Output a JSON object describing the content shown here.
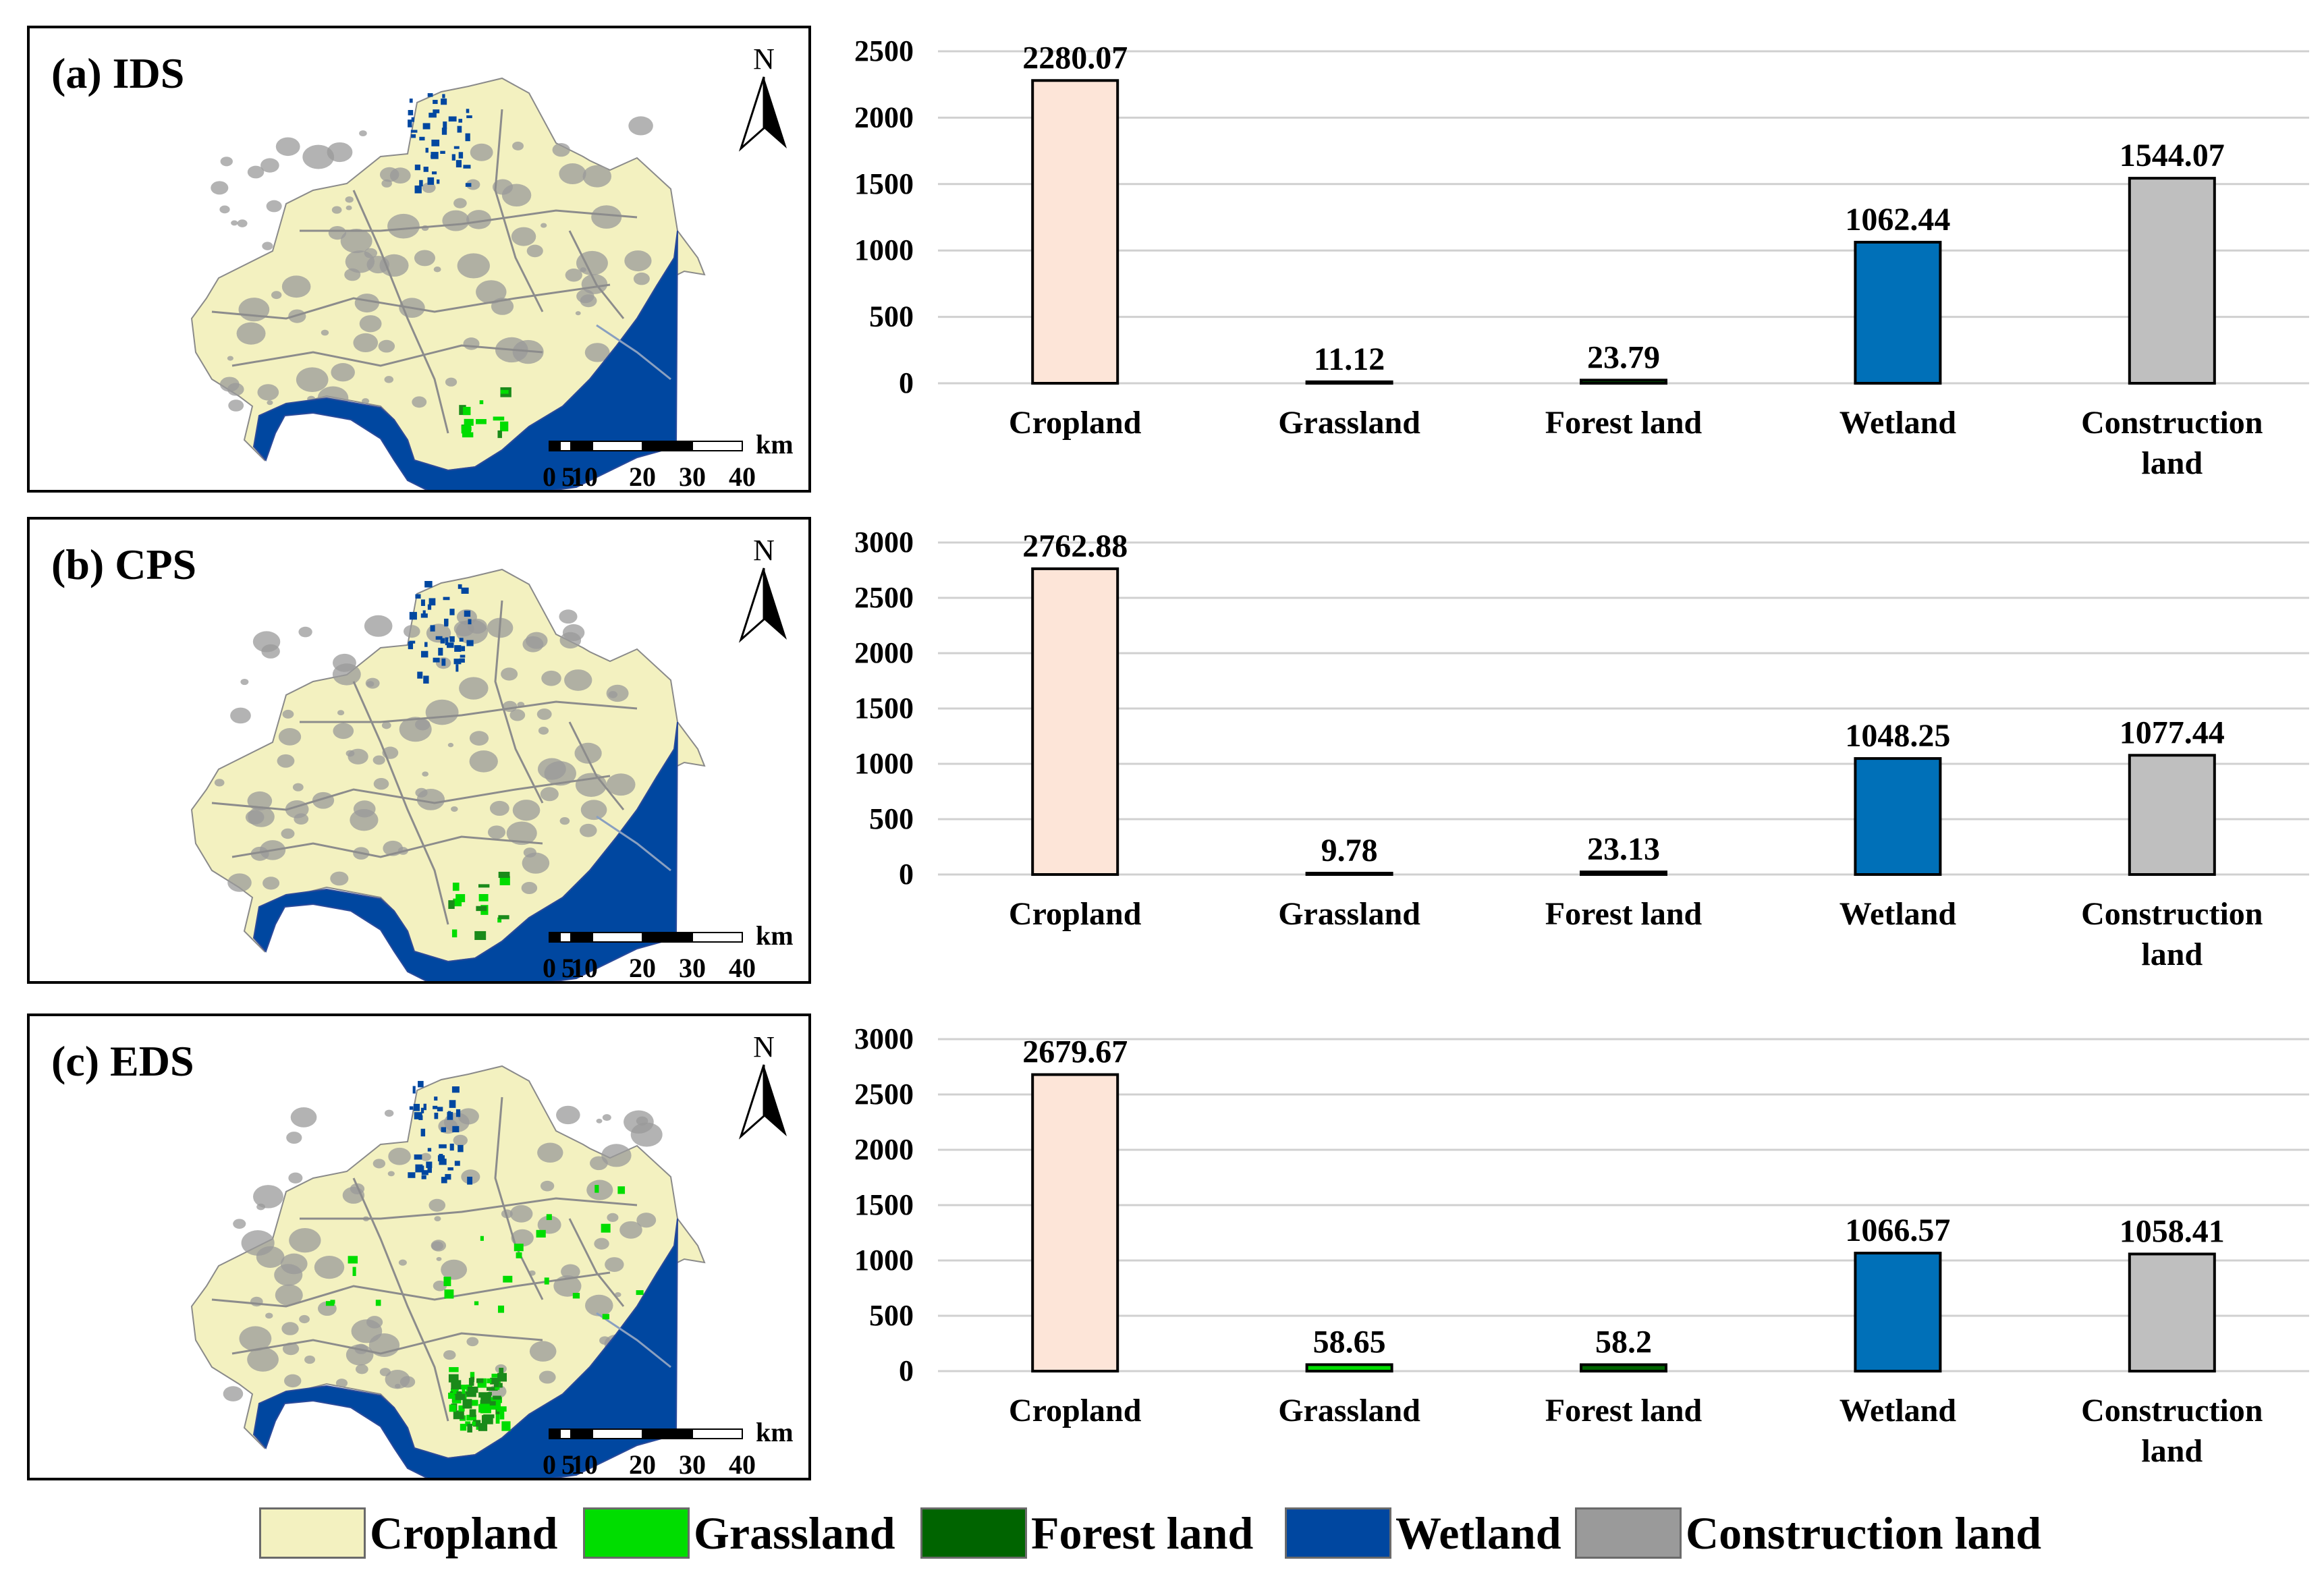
{
  "categories": [
    "Cropland",
    "Grassland",
    "Forest land",
    "Wetland",
    "Construction land"
  ],
  "colors": {
    "Cropland_bar": "#fde5d8",
    "Grassland": "#00dd00",
    "Forest land": "#006400",
    "Wetland": "#0070b8",
    "Construction land": "#bfbfbf",
    "Cropland_map": "#f3f1c0",
    "Wetland_map": "#0047a0",
    "Construction_map": "#9a9a9a"
  },
  "panels": [
    {
      "title": "(a) IDS",
      "north": "N",
      "scale": {
        "unit": "km",
        "ticks": [
          "0",
          "5",
          "10",
          "20",
          "30",
          "40"
        ]
      },
      "chart_data": {
        "type": "bar",
        "title": "(a) IDS",
        "categories": [
          "Cropland",
          "Grassland",
          "Forest land",
          "Wetland",
          "Construction land"
        ],
        "values": [
          2280.07,
          11.12,
          23.79,
          1062.44,
          1544.07
        ],
        "value_labels": [
          "2280.07",
          "11.12",
          "23.79",
          "1062.44",
          "1544.07"
        ],
        "ylim": [
          0,
          2500
        ],
        "yticks": [
          "0",
          "500",
          "1000",
          "1500",
          "2000",
          "2500"
        ],
        "xlabel": "",
        "ylabel": "",
        "grid": true
      }
    },
    {
      "title": "(b) CPS",
      "north": "N",
      "scale": {
        "unit": "km",
        "ticks": [
          "0",
          "5",
          "10",
          "20",
          "30",
          "40"
        ]
      },
      "chart_data": {
        "type": "bar",
        "title": "(b) CPS",
        "categories": [
          "Cropland",
          "Grassland",
          "Forest land",
          "Wetland",
          "Construction land"
        ],
        "values": [
          2762.88,
          9.78,
          23.13,
          1048.25,
          1077.44
        ],
        "value_labels": [
          "2762.88",
          "9.78",
          "23.13",
          "1048.25",
          "1077.44"
        ],
        "ylim": [
          0,
          3000
        ],
        "yticks": [
          "0",
          "500",
          "1000",
          "1500",
          "2000",
          "2500",
          "3000"
        ],
        "xlabel": "",
        "ylabel": "",
        "grid": true
      }
    },
    {
      "title": "(c) EDS",
      "north": "N",
      "scale": {
        "unit": "km",
        "ticks": [
          "0",
          "5",
          "10",
          "20",
          "30",
          "40"
        ]
      },
      "chart_data": {
        "type": "bar",
        "title": "(c) EDS",
        "categories": [
          "Cropland",
          "Grassland",
          "Forest land",
          "Wetland",
          "Construction land"
        ],
        "values": [
          2679.67,
          58.65,
          58.2,
          1066.57,
          1058.41
        ],
        "value_labels": [
          "2679.67",
          "58.65",
          "58.2",
          "1066.57",
          "1058.41"
        ],
        "ylim": [
          0,
          3000
        ],
        "yticks": [
          "0",
          "500",
          "1000",
          "1500",
          "2000",
          "2500",
          "3000"
        ],
        "xlabel": "",
        "ylabel": "",
        "grid": true
      }
    }
  ],
  "legend": [
    {
      "label": "Cropland",
      "color": "#f3f1c0"
    },
    {
      "label": "Grassland",
      "color": "#00dd00"
    },
    {
      "label": "Forest land",
      "color": "#006400"
    },
    {
      "label": "Wetland",
      "color": "#0047a0"
    },
    {
      "label": "Construction land",
      "color": "#9a9a9a"
    }
  ]
}
